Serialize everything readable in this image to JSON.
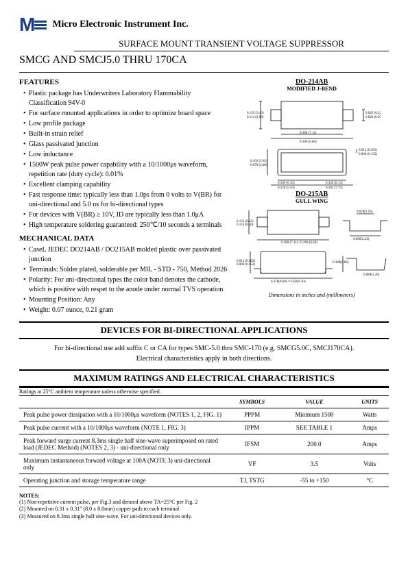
{
  "company": "Micro Electronic Instrument Inc.",
  "subtitle": "SURFACE MOUNT TRANSIENT VOLTAGE SUPPRESSOR",
  "product_title": "SMCG AND SMCJ5.0 THRU 170CA",
  "features_heading": "FEATURES",
  "features": [
    "Plastic package has Underwriters Laboratory Flammability Classification 94V-0",
    "For surface mounted applications in order to optimize board space",
    "Low profile package",
    "Built-in strain relief",
    "Glass passivated junction",
    "Low inductance",
    "1500W peak pulse power capability with a 10/1000μs waveform, repetition rate (duty cycle): 0.01%",
    "Excellent clamping capability",
    "Fast response time: typically less than 1.0ps from 0 volts to V(BR) for uni-directional and 5.0 ns for bi-directional types",
    "For devices with V(BR) ≥ 10V, ID are typically less than 1.0μA",
    "High temperature soldering guaranteed: 250℃/10 seconds a terminals"
  ],
  "mechanical_heading": "MECHANICAL DATA",
  "mechanical": [
    "CaseL JEDEC DO214AB / DO215AB molded plastic over passivated junction",
    "Terminals: Solder plated, solderable per MIL - STD - 750, Method 2026",
    "Polarity: For uni-directional types the color band denotes the cathode, which is positive with respet to the anode under normal TVS operation",
    "Mounting Position: Any",
    "Weight: 0.07 ounce, 0.21 gram"
  ],
  "dim_note": "Dimensions in inches and (millimeters)",
  "pkg1_title": "DO-214AB",
  "pkg1_sub": "MODIFIED J-BEND",
  "pkg2_title": "DO-215AB",
  "pkg2_sub": "GULL WING",
  "bidir_heading": "DEVICES FOR BI-DIRECTIONAL APPLICATIONS",
  "bidir_text1": "For bi-directional use add suffix C or CA for types SMC-5.0 thru SMC-170 (e.g. SMCG5.0C, SMCJ170CA).",
  "bidir_text2": "Electrical characteristics apply in both directions.",
  "ratings_heading": "MAXIMUM RATINGS AND ELECTRICAL CHARACTERISTICS",
  "ratings_note": "Ratings at 25°C ambient temperature unless otherwise specified.",
  "table_headers": {
    "symbols": "SYMBOLS",
    "value": "VALUE",
    "units": "UNITS"
  },
  "table_rows": [
    {
      "desc": "Peak pulse power dissipation with a 10/1000μs waveform (NOTES 1, 2, FIG. 1)",
      "sym": "PPPM",
      "val": "Minimum 1500",
      "unit": "Watts"
    },
    {
      "desc": "Peak pulse current with a 10/1000μs waveform (NOTE 1, FIG. 3)",
      "sym": "IPPM",
      "val": "SEE TABLE 1",
      "unit": "Amps"
    },
    {
      "desc": "Peak forward surge current 8.3ms single half sine-wave superimposed on rated load (JEDEC Method) (NOTES 2, 3) - uni-directional only",
      "sym": "IFSM",
      "val": "200.0",
      "unit": "Amps"
    },
    {
      "desc": "Maximum instantaneous forward voltage at 100A (NOTE 3) uni-directional only",
      "sym": "VF",
      "val": "3.5",
      "unit": "Volts"
    },
    {
      "desc": "Operating junction and storage temperature range",
      "sym": "TJ, TSTG",
      "val": "-55 to +150",
      "unit": "°C"
    }
  ],
  "notes_heading": "NOTES:",
  "notes": [
    "(1) Non-repetitive current pulse, per Fig.3 and derated above TA=25°C per Fig. 2",
    "(2) Mounted on 0.31 x 0.31\" (8.0 x 8.0mm) copper pads to each terminal",
    "(3) Measured on 8.3ms single half sine-wave. For uni-directional devices only."
  ],
  "colors": {
    "brand": "#1a3c8c",
    "black": "#000000"
  }
}
